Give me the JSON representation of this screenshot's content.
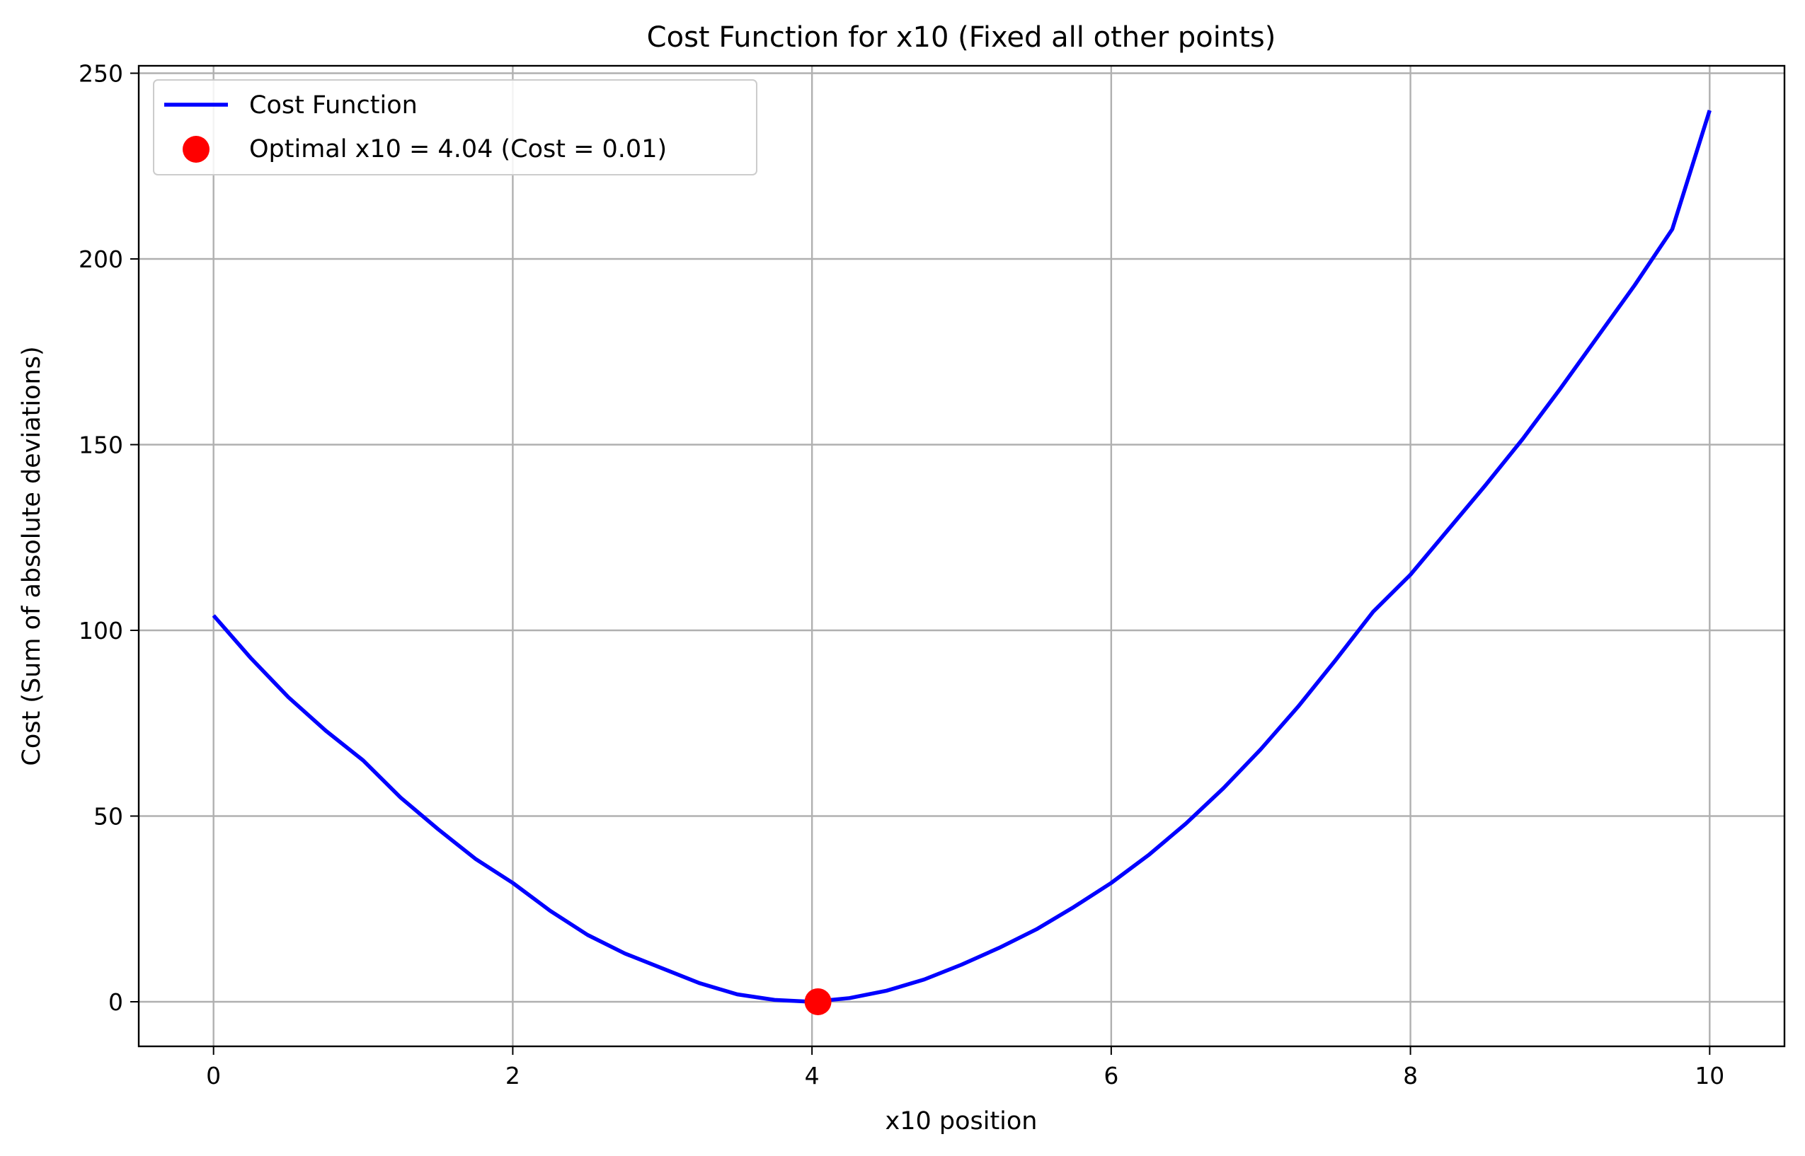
{
  "chart_data": {
    "type": "line",
    "title": "Cost Function for x10 (Fixed all other points)",
    "xlabel": "x10 position",
    "ylabel": "Cost (Sum of absolute deviations)",
    "xlim": [
      -0.5,
      10.5
    ],
    "ylim": [
      -12,
      252
    ],
    "xticks": [
      0,
      2,
      4,
      6,
      8,
      10
    ],
    "yticks": [
      0,
      50,
      100,
      150,
      200,
      250
    ],
    "grid": true,
    "legend_position": "upper left",
    "series": [
      {
        "name": "Cost Function",
        "color": "#0000ff",
        "x": [
          0,
          0.25,
          0.5,
          0.75,
          1,
          1.25,
          1.5,
          1.75,
          2,
          2.25,
          2.5,
          2.75,
          3,
          3.25,
          3.5,
          3.75,
          4,
          4.25,
          4.5,
          4.75,
          5,
          5.25,
          5.5,
          5.75,
          6,
          6.25,
          6.5,
          6.75,
          7,
          7.25,
          7.5,
          7.75,
          8,
          8.25,
          8.5,
          8.75,
          9,
          9.25,
          9.5,
          9.75,
          10
        ],
        "y": [
          104,
          92.5,
          82,
          73,
          65,
          55,
          46.5,
          38.5,
          32,
          24.5,
          18,
          13,
          9,
          5,
          2,
          0.5,
          0,
          1,
          3,
          6,
          10,
          14.5,
          19.5,
          25.5,
          32,
          39.5,
          48,
          57.5,
          68,
          79.5,
          92,
          105,
          115,
          127,
          139,
          151.5,
          165,
          179,
          193,
          208,
          240
        ]
      }
    ],
    "marker": {
      "label": "Optimal x10 = 4.04 (Cost = 0.01)",
      "x": 4.04,
      "y": 0.01,
      "color": "#ff0000"
    }
  }
}
